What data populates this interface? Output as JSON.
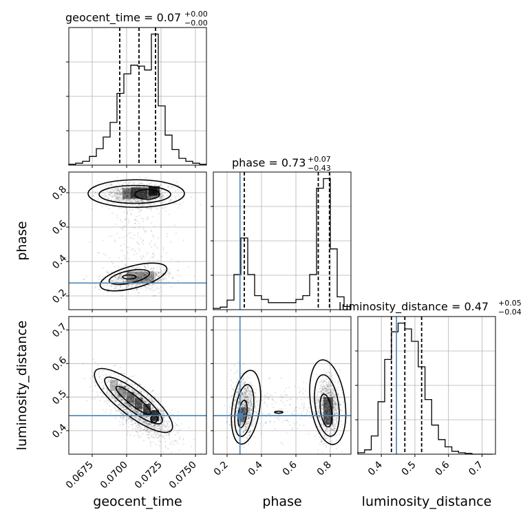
{
  "chart_data": {
    "type": "corner",
    "parameters": [
      {
        "name": "geocent_time",
        "median": "0.07",
        "plus": "+0.00",
        "minus": "−0.00",
        "range": [
          0.0658,
          0.0758
        ],
        "ticks": [
          0.0675,
          0.07,
          0.0725,
          0.075
        ],
        "tick_labels": [
          "0.0675",
          "0.0700",
          "0.0725",
          "0.0750"
        ],
        "quantiles": [
          0.0695,
          0.0709,
          0.0721
        ],
        "hist_edges": [
          0.0658,
          0.0663,
          0.0668,
          0.0673,
          0.0678,
          0.0683,
          0.0688,
          0.0693,
          0.0698,
          0.0703,
          0.0708,
          0.0713,
          0.0718,
          0.0723,
          0.0728,
          0.0733,
          0.0738,
          0.0743,
          0.0748,
          0.0753,
          0.0758
        ],
        "hist_counts": [
          1,
          2,
          4,
          9,
          17,
          29,
          44,
          74,
          94,
          103,
          102,
          98,
          135,
          61,
          31,
          16,
          7,
          4,
          2,
          1
        ]
      },
      {
        "name": "phase",
        "median": "0.73",
        "plus": "+0.07",
        "minus": "−0.43",
        "range": [
          0.12,
          0.92
        ],
        "truth": 0.275,
        "ticks": [
          0.2,
          0.4,
          0.6,
          0.8
        ],
        "tick_labels": [
          "0.2",
          "0.4",
          "0.6",
          "0.8"
        ],
        "quantiles": [
          0.3,
          0.73,
          0.795
        ],
        "hist_edges": [
          0.12,
          0.16,
          0.2,
          0.24,
          0.28,
          0.32,
          0.36,
          0.4,
          0.44,
          0.48,
          0.52,
          0.56,
          0.6,
          0.64,
          0.68,
          0.72,
          0.76,
          0.8,
          0.84,
          0.88,
          0.92
        ],
        "hist_counts": [
          2,
          4,
          15,
          55,
          112,
          55,
          22,
          16,
          11,
          11,
          11,
          11,
          16,
          22,
          55,
          190,
          205,
          95,
          20,
          5
        ]
      },
      {
        "name": "luminosity_distance",
        "median": "0.47",
        "plus": "+0.05",
        "minus": "−0.04",
        "range": [
          0.33,
          0.74
        ],
        "truth": 0.445,
        "ticks": [
          0.4,
          0.5,
          0.6,
          0.7
        ],
        "tick_labels": [
          "0.4",
          "0.5",
          "0.6",
          "0.7"
        ],
        "quantiles": [
          0.43,
          0.47,
          0.52
        ],
        "hist_edges": [
          0.33,
          0.35,
          0.37,
          0.39,
          0.41,
          0.43,
          0.45,
          0.47,
          0.49,
          0.51,
          0.53,
          0.55,
          0.57,
          0.59,
          0.61,
          0.63,
          0.65,
          0.67,
          0.69,
          0.71,
          0.73
        ],
        "hist_counts": [
          2,
          6,
          25,
          72,
          130,
          168,
          180,
          172,
          155,
          120,
          75,
          40,
          20,
          10,
          4,
          2,
          1,
          0,
          0,
          0
        ]
      }
    ],
    "grid": true,
    "scatter_alpha": 0.1
  },
  "colors": {
    "truth": "#4682b4",
    "hist": "#000000",
    "grid": "#b0b0b0"
  }
}
